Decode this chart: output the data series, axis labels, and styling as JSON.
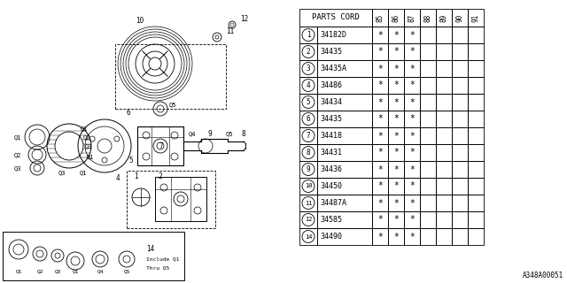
{
  "diagram_code": "A348A00051",
  "table_header": "PARTS CORD",
  "col_headers": [
    "85",
    "86",
    "87",
    "88",
    "89",
    "90",
    "91"
  ],
  "parts": [
    {
      "num": "1",
      "code": "34182D",
      "marks": [
        1,
        1,
        1,
        0,
        0,
        0,
        0
      ]
    },
    {
      "num": "2",
      "code": "34435",
      "marks": [
        1,
        1,
        1,
        0,
        0,
        0,
        0
      ]
    },
    {
      "num": "3",
      "code": "34435A",
      "marks": [
        1,
        1,
        1,
        0,
        0,
        0,
        0
      ]
    },
    {
      "num": "4",
      "code": "34486",
      "marks": [
        1,
        1,
        1,
        0,
        0,
        0,
        0
      ]
    },
    {
      "num": "5",
      "code": "34434",
      "marks": [
        1,
        1,
        1,
        0,
        0,
        0,
        0
      ]
    },
    {
      "num": "6",
      "code": "34435",
      "marks": [
        1,
        1,
        1,
        0,
        0,
        0,
        0
      ]
    },
    {
      "num": "7",
      "code": "34418",
      "marks": [
        1,
        1,
        1,
        0,
        0,
        0,
        0
      ]
    },
    {
      "num": "8",
      "code": "34431",
      "marks": [
        1,
        1,
        1,
        0,
        0,
        0,
        0
      ]
    },
    {
      "num": "9",
      "code": "34436",
      "marks": [
        1,
        1,
        1,
        0,
        0,
        0,
        0
      ]
    },
    {
      "num": "10",
      "code": "34450",
      "marks": [
        1,
        1,
        1,
        0,
        0,
        0,
        0
      ]
    },
    {
      "num": "11",
      "code": "34487A",
      "marks": [
        1,
        1,
        1,
        0,
        0,
        0,
        0
      ]
    },
    {
      "num": "12",
      "code": "34585",
      "marks": [
        1,
        1,
        1,
        0,
        0,
        0,
        0
      ]
    },
    {
      "num": "14",
      "code": "34490",
      "marks": [
        1,
        1,
        1,
        0,
        0,
        0,
        0
      ]
    }
  ],
  "bg_color": "#ffffff",
  "line_color": "#000000",
  "text_color": "#000000"
}
